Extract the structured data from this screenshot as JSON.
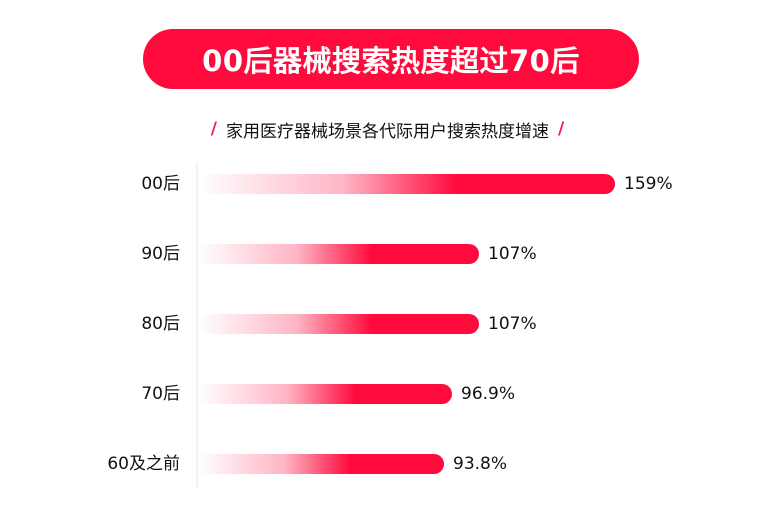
{
  "title": "00后器械搜索热度超过70后",
  "subtitle": "家用医疗器械场景各代际用户搜索热度增速",
  "subtitle_slash": "/",
  "colors": {
    "accent": "#ff0a3c",
    "text": "#111111"
  },
  "chart_data": {
    "type": "bar",
    "orientation": "horizontal",
    "title": "",
    "categories": [
      "00后",
      "90后",
      "80后",
      "70后",
      "60及之前"
    ],
    "values": [
      159,
      107,
      107,
      96.9,
      93.8
    ],
    "value_labels": [
      "159%",
      "107%",
      "107%",
      "96.9%",
      "93.8%"
    ],
    "unit": "%",
    "xlabel": "",
    "ylabel": "",
    "xlim": [
      0,
      159
    ],
    "grid": false,
    "legend": "none"
  }
}
